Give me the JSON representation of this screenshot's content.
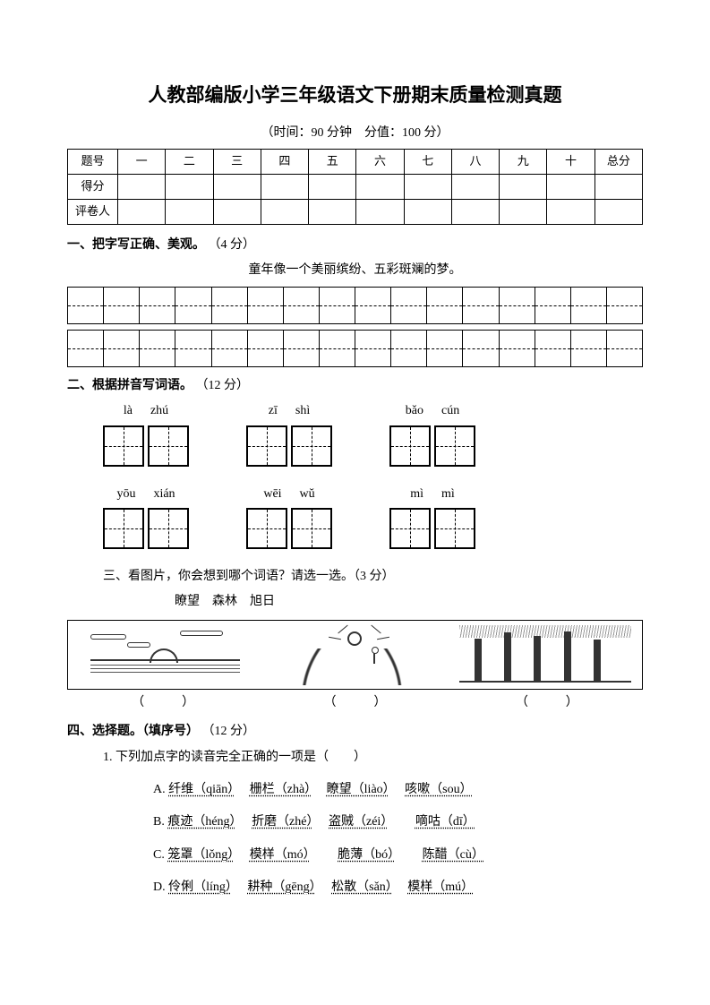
{
  "title": "人教部编版小学三年级语文下册期末质量检测真题",
  "subtitle": "（时间：90 分钟　分值：100 分）",
  "scoreTable": {
    "row1": {
      "label": "题号",
      "cells": [
        "一",
        "二",
        "三",
        "四",
        "五",
        "六",
        "七",
        "八",
        "九",
        "十",
        "总分"
      ]
    },
    "row2": {
      "label": "得分"
    },
    "row3": {
      "label": "评卷人"
    }
  },
  "q1": {
    "heading": "一、把字写正确、美观。",
    "points": "（4 分）",
    "sentence": "童年像一个美丽缤纷、五彩斑斓的梦。",
    "cols": 16
  },
  "q2": {
    "heading": "二、根据拼音写词语。",
    "points": "（12 分）",
    "row1": [
      {
        "a": "là",
        "b": "zhú"
      },
      {
        "a": "zī",
        "b": "shì"
      },
      {
        "a": "bǎo",
        "b": "cún"
      }
    ],
    "row2": [
      {
        "a": "yōu",
        "b": "xián"
      },
      {
        "a": "wēi",
        "b": "wǔ"
      },
      {
        "a": "mì",
        "b": "mì"
      }
    ]
  },
  "q3": {
    "heading": "三、看图片，你会想到哪个词语？请选一选。（3 分）",
    "words": "瞭望　森林　旭日",
    "answerSlot": "（　　　）"
  },
  "q4": {
    "heading": "四、选择题。（填序号）",
    "points": "（12 分）",
    "stem": "1. 下列加点字的读音完全正确的一项是（　　）",
    "optA": {
      "tag": "A.",
      "w1": "纤维（qiān）",
      "w2": "栅栏（zhà）",
      "w3": "瞭望（liào）",
      "w4": "咳嗽（sou）"
    },
    "optB": {
      "tag": "B.",
      "w1": "痕迹（héng）",
      "w2": "折磨（zhé）",
      "w3": "盗贼（zéi）",
      "w4": "嘀咕（dī）"
    },
    "optC": {
      "tag": "C.",
      "w1": "笼罩（lǒng）",
      "w2": "模样（mó）",
      "w3": "脆薄（bó）",
      "w4": "陈醋（cù）"
    },
    "optD": {
      "tag": "D.",
      "w1": "伶俐（líng）",
      "w2": "耕种（gēng）",
      "w3": "松散（sǎn）",
      "w4": "模样（mú）"
    }
  }
}
